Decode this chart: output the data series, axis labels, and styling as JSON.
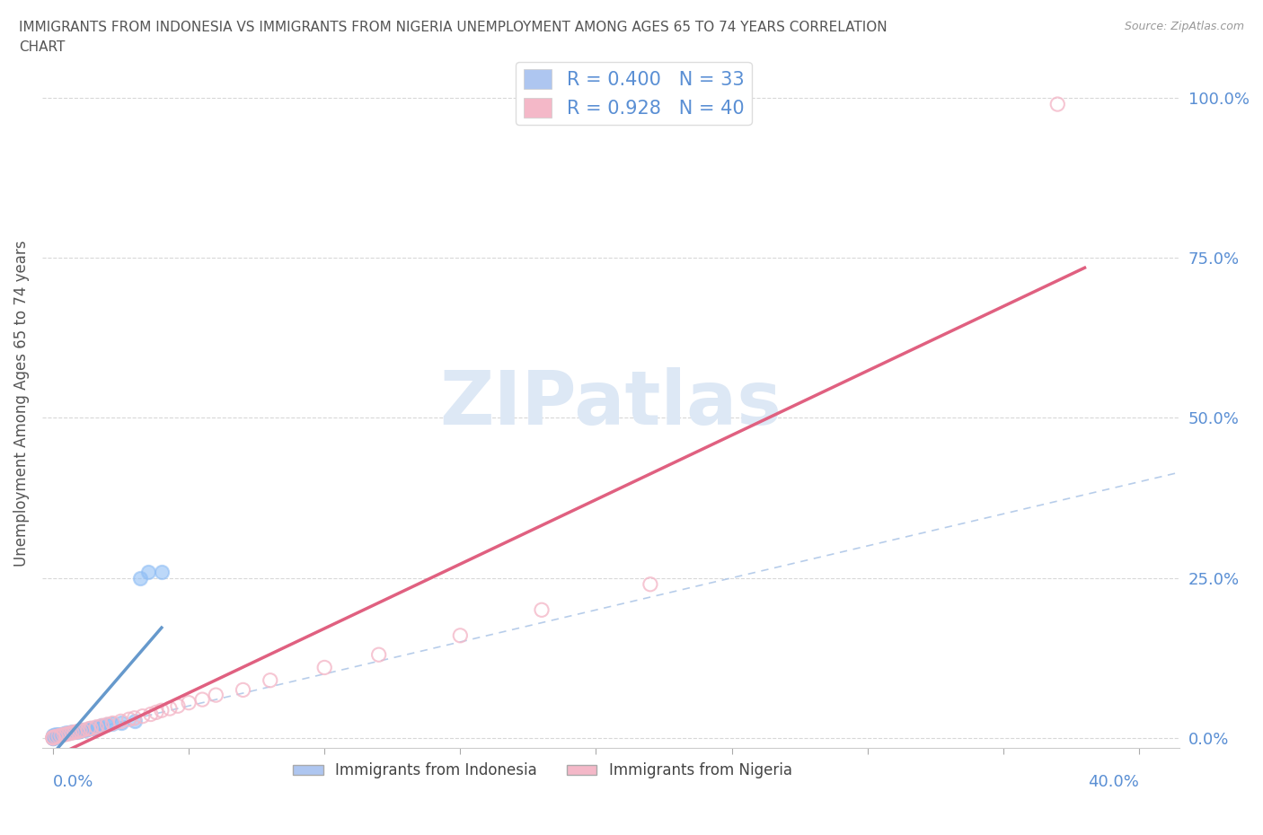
{
  "title_line1": "IMMIGRANTS FROM INDONESIA VS IMMIGRANTS FROM NIGERIA UNEMPLOYMENT AMONG AGES 65 TO 74 YEARS CORRELATION",
  "title_line2": "CHART",
  "source": "Source: ZipAtlas.com",
  "ylabel": "Unemployment Among Ages 65 to 74 years",
  "yticks": [
    "0.0%",
    "25.0%",
    "50.0%",
    "75.0%",
    "100.0%"
  ],
  "ytick_vals": [
    0.0,
    0.25,
    0.5,
    0.75,
    1.0
  ],
  "legend1_label": "R = 0.400   N = 33",
  "legend2_label": "R = 0.928   N = 40",
  "legend1_color": "#aec6f0",
  "legend2_color": "#f4b8c8",
  "scatter1_color": "#90bef5",
  "scatter2_color": "#f4b8c8",
  "line1_color": "#6699cc",
  "line2_color": "#e06080",
  "diag_color": "#b0c8e8",
  "watermark": "ZIPatlas",
  "watermark_color": "#dde8f5",
  "title_color": "#555555",
  "axis_color": "#5a8fd4",
  "bottom_legend1": "Immigrants from Indonesia",
  "bottom_legend2": "Immigrants from Nigeria",
  "indonesia_x": [
    0.0,
    0.0,
    0.0,
    0.0,
    0.0,
    0.0,
    0.0,
    0.001,
    0.002,
    0.003,
    0.004,
    0.005,
    0.006,
    0.007,
    0.008,
    0.009,
    0.01,
    0.01,
    0.011,
    0.012,
    0.013,
    0.014,
    0.015,
    0.016,
    0.017,
    0.018,
    0.02,
    0.022,
    0.025,
    0.03,
    0.032,
    0.035,
    0.04
  ],
  "indonesia_y": [
    0.0,
    0.0,
    0.0,
    0.001,
    0.002,
    0.003,
    0.004,
    0.005,
    0.005,
    0.006,
    0.007,
    0.008,
    0.008,
    0.009,
    0.01,
    0.01,
    0.011,
    0.012,
    0.012,
    0.013,
    0.014,
    0.015,
    0.015,
    0.016,
    0.017,
    0.019,
    0.021,
    0.022,
    0.024,
    0.027,
    0.25,
    0.26,
    0.26
  ],
  "nigeria_x": [
    0.0,
    0.0,
    0.0,
    0.001,
    0.002,
    0.003,
    0.004,
    0.005,
    0.006,
    0.007,
    0.008,
    0.009,
    0.01,
    0.011,
    0.013,
    0.014,
    0.016,
    0.018,
    0.02,
    0.022,
    0.025,
    0.028,
    0.03,
    0.033,
    0.036,
    0.038,
    0.04,
    0.043,
    0.046,
    0.05,
    0.055,
    0.06,
    0.07,
    0.08,
    0.1,
    0.12,
    0.15,
    0.18,
    0.22,
    0.37
  ],
  "nigeria_y": [
    0.0,
    0.0,
    0.001,
    0.002,
    0.003,
    0.004,
    0.005,
    0.006,
    0.007,
    0.008,
    0.009,
    0.01,
    0.011,
    0.012,
    0.014,
    0.015,
    0.017,
    0.019,
    0.021,
    0.023,
    0.026,
    0.029,
    0.031,
    0.034,
    0.037,
    0.04,
    0.043,
    0.046,
    0.05,
    0.055,
    0.06,
    0.067,
    0.075,
    0.09,
    0.11,
    0.13,
    0.16,
    0.2,
    0.24,
    0.99
  ],
  "xmin": -0.004,
  "xmax": 0.415,
  "ymin": -0.015,
  "ymax": 1.06
}
